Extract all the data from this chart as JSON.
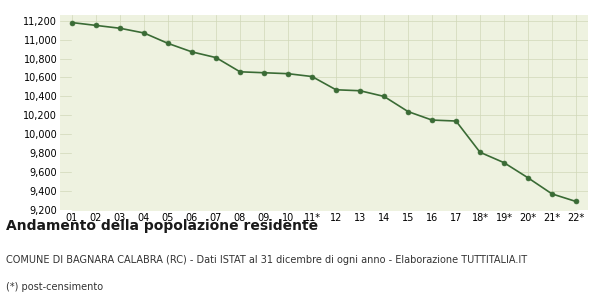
{
  "x_labels": [
    "01",
    "02",
    "03",
    "04",
    "05",
    "06",
    "07",
    "08",
    "09",
    "10",
    "11*",
    "12",
    "13",
    "14",
    "15",
    "16",
    "17",
    "18*",
    "19*",
    "20*",
    "21*",
    "22*"
  ],
  "y_values": [
    11180,
    11150,
    11120,
    11070,
    10960,
    10870,
    10810,
    10660,
    10650,
    10640,
    10610,
    10470,
    10460,
    10400,
    10240,
    10150,
    10140,
    9810,
    9700,
    9540,
    9370,
    9290
  ],
  "line_color": "#3a6b35",
  "fill_color": "#eef2e0",
  "marker_color": "#3a6b35",
  "background_color": "#ffffff",
  "grid_color": "#d0d8b8",
  "ylim": [
    9200,
    11260
  ],
  "yticks": [
    9200,
    9400,
    9600,
    9800,
    10000,
    10200,
    10400,
    10600,
    10800,
    11000,
    11200
  ],
  "title": "Andamento della popolazione residente",
  "subtitle": "COMUNE DI BAGNARA CALABRA (RC) - Dati ISTAT al 31 dicembre di ogni anno - Elaborazione TUTTITALIA.IT",
  "footnote": "(*) post-censimento",
  "title_fontsize": 10,
  "subtitle_fontsize": 7,
  "footnote_fontsize": 7,
  "tick_fontsize": 7,
  "marker_size": 3.5,
  "linewidth": 1.2
}
